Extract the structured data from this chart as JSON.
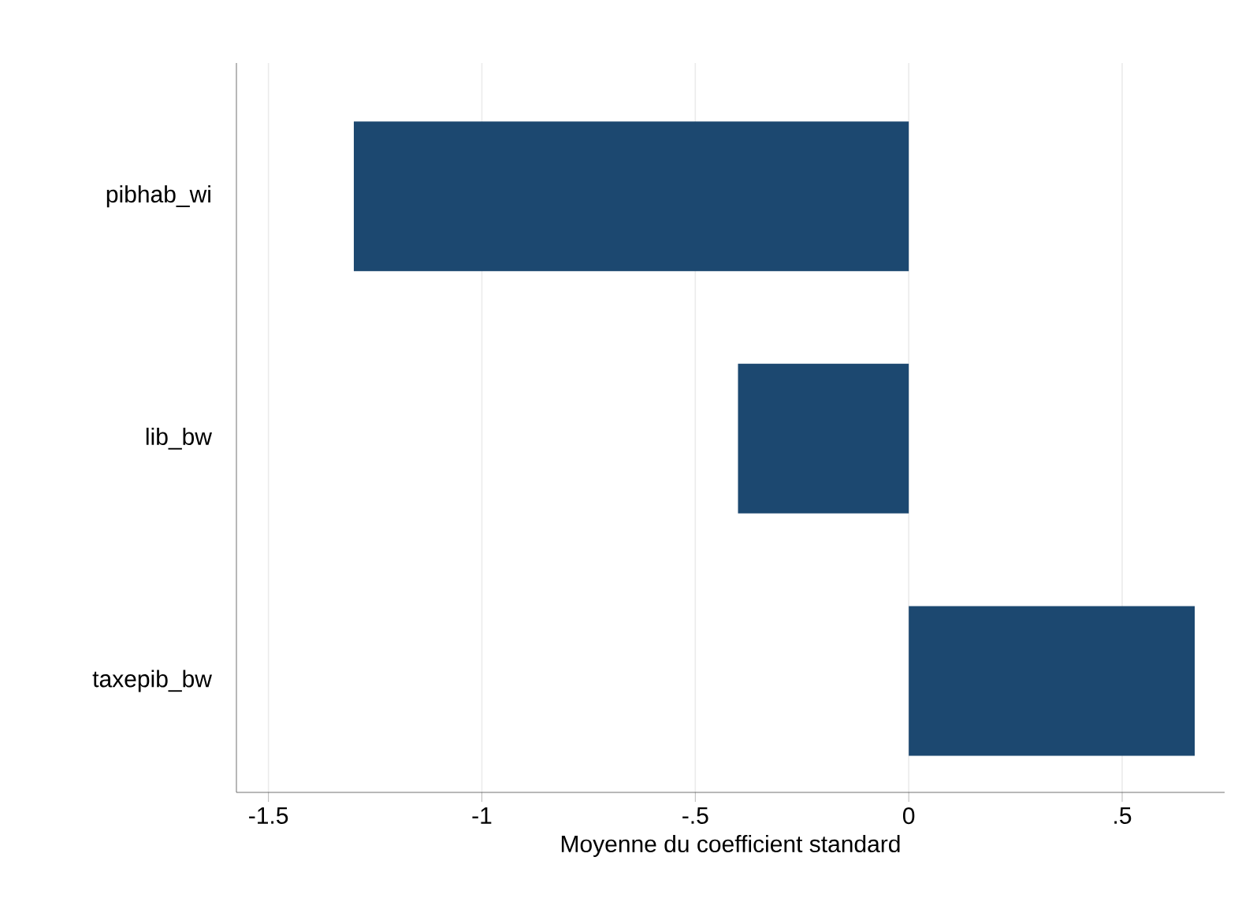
{
  "chart_data": {
    "type": "bar",
    "orientation": "horizontal",
    "xlabel": "Moyenne du coefficient standard",
    "categories": [
      "pibhab_wi",
      "lib_bw",
      "taxepib_bw"
    ],
    "values": [
      -1.3,
      -0.4,
      0.67
    ],
    "color": "#1c4870",
    "xlim": [
      -1.575,
      0.74
    ],
    "xticks": [
      -1.5,
      -1,
      {
        "value": -0.5,
        "label": "-.5"
      },
      0,
      {
        "value": 0.5,
        "label": ".5"
      }
    ],
    "grid": "x"
  }
}
